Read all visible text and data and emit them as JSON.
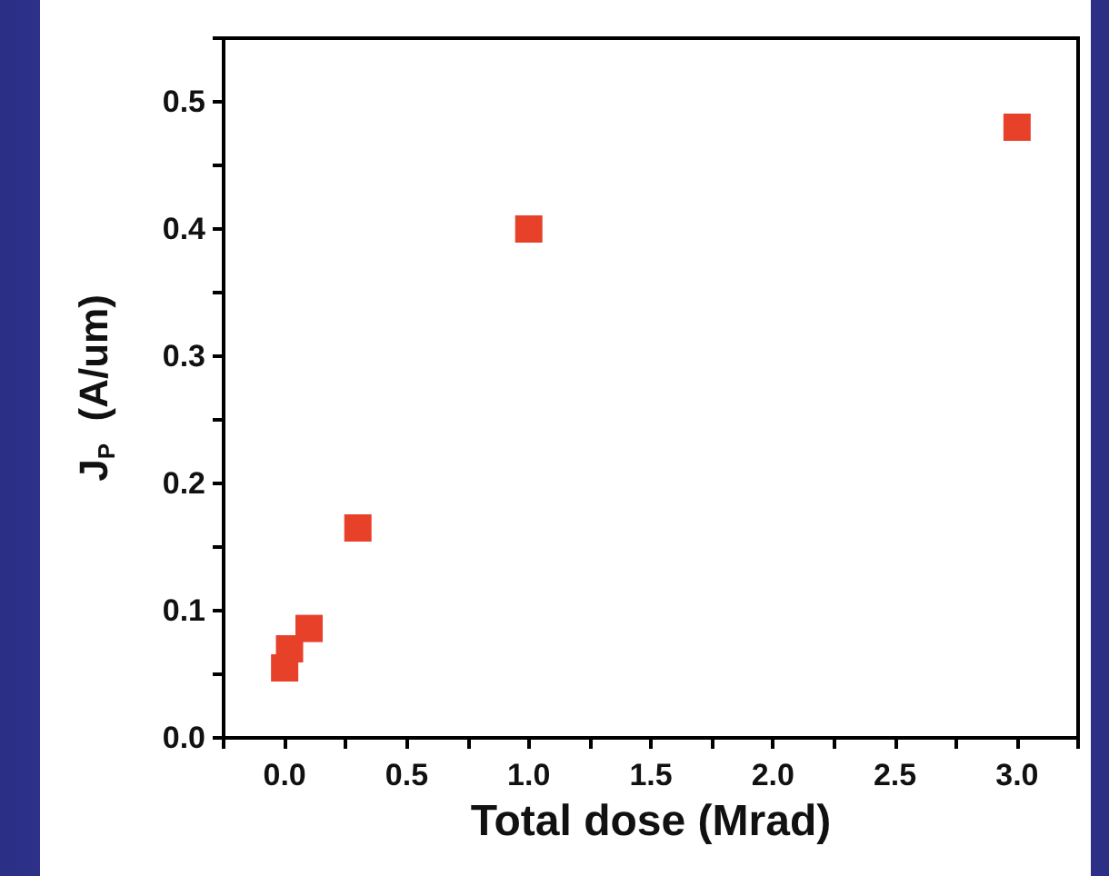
{
  "chart_data": {
    "type": "scatter",
    "xlabel": "Total dose (Mrad)",
    "ylabel": "J$_{P}$  (A/um)",
    "x": [
      0,
      0.02,
      0.1,
      0.3,
      1.0,
      3.0
    ],
    "series": [
      {
        "color": "#e8412a",
        "values": [
          0.055,
          0.07,
          0.086,
          0.165,
          0.4,
          0.48
        ]
      }
    ],
    "marker": "square",
    "grid": false,
    "xlim": [
      -0.25,
      3.25
    ],
    "xticks": [
      {
        "value": -0.25,
        "label": null
      },
      {
        "value": 0,
        "label": "0.0"
      },
      {
        "value": 0.25,
        "label": null
      },
      0.5,
      {
        "value": 0.75,
        "label": null
      },
      {
        "value": 1,
        "label": "1.0"
      },
      {
        "value": 1.25,
        "label": null
      },
      1.5,
      {
        "value": 1.75,
        "label": null
      },
      {
        "value": 2,
        "label": "2.0"
      },
      {
        "value": 2.25,
        "label": null
      },
      2.5,
      {
        "value": 2.75,
        "label": null
      },
      {
        "value": 3,
        "label": "3.0"
      },
      {
        "value": 3.25,
        "label": null
      }
    ],
    "ylim": [
      0,
      0.55
    ],
    "yticks": [
      {
        "value": 0,
        "label": "0.0"
      },
      {
        "value": 0.05,
        "label": null
      },
      0.1,
      {
        "value": 0.15,
        "label": null
      },
      0.2,
      {
        "value": 0.25,
        "label": null
      },
      0.3,
      {
        "value": 0.35,
        "label": null
      },
      0.4,
      {
        "value": 0.45,
        "label": null
      },
      0.5,
      {
        "value": 0.55,
        "label": null
      }
    ]
  }
}
